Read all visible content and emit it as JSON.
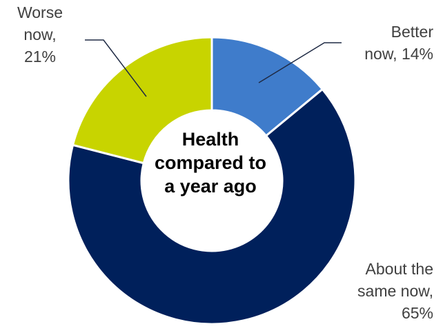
{
  "chart_data": {
    "type": "pie",
    "title": "Health compared to a year ago",
    "title_lines": [
      "Health",
      "compared to",
      "a year ago"
    ],
    "donut": true,
    "slices": [
      {
        "id": "better",
        "label": "Better now",
        "value": 14,
        "display": "14%",
        "color": "#3F7CCB",
        "label_lines": [
          "Better",
          "now, 14%"
        ]
      },
      {
        "id": "same",
        "label": "About the same now",
        "value": 65,
        "display": "65%",
        "color": "#00205B",
        "label_lines": [
          "About the",
          "same now,",
          "65%"
        ]
      },
      {
        "id": "worse",
        "label": "Worse now",
        "value": 21,
        "display": "21%",
        "color": "#C8D400",
        "label_lines": [
          "Worse",
          "now,",
          "21%"
        ]
      }
    ]
  }
}
